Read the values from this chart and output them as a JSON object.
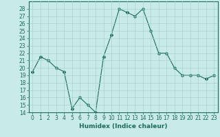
{
  "xlabel": "Humidex (Indice chaleur)",
  "ylabel": "",
  "x_values": [
    0,
    1,
    2,
    3,
    4,
    5,
    6,
    7,
    8,
    9,
    10,
    11,
    12,
    13,
    14,
    15,
    16,
    17,
    18,
    19,
    20,
    21,
    22,
    23
  ],
  "y_values": [
    19.5,
    21.5,
    21,
    20,
    19.5,
    14.5,
    16,
    15,
    14,
    21.5,
    24.5,
    28,
    27.5,
    27,
    28,
    25,
    22,
    22,
    20,
    19,
    19,
    19,
    18.5,
    19
  ],
  "ylim": [
    14,
    29
  ],
  "yticks": [
    14,
    15,
    16,
    17,
    18,
    19,
    20,
    21,
    22,
    23,
    24,
    25,
    26,
    27,
    28
  ],
  "line_color": "#1a6b5a",
  "marker": "D",
  "marker_size": 2,
  "bg_color": "#c8eae8",
  "grid_color": "#a8d4d0",
  "axes_color": "#1a6b5a",
  "title_fontsize": 6,
  "label_fontsize": 6.5,
  "tick_fontsize": 5.5
}
